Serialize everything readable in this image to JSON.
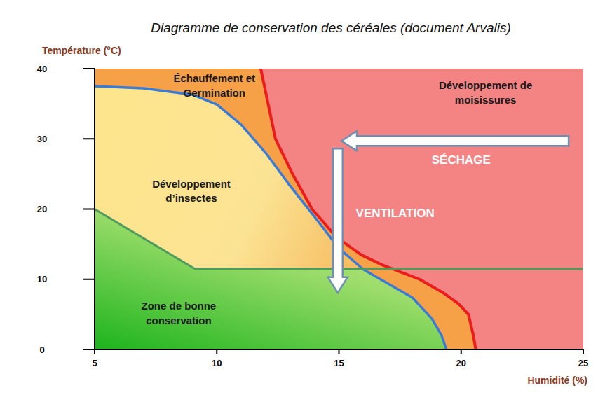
{
  "chart_data": {
    "type": "line",
    "title": "Diagramme de conservation des céréales (document Arvalis)",
    "x_label": "Humidité (%)",
    "y_label": "Température (°C)",
    "xlim": [
      5,
      25
    ],
    "ylim": [
      0,
      40
    ],
    "xticks": [
      5,
      10,
      15,
      20,
      25
    ],
    "yticks": [
      0,
      10,
      20,
      30,
      40
    ],
    "grid": false,
    "series": [
      {
        "color": "#ec1c1c",
        "x": [
          11.8,
          12.1,
          12.4,
          13.1,
          13.9,
          14.9,
          15.9,
          16.8,
          18.3,
          19.3,
          19.9,
          20.3,
          20.5,
          20.6
        ],
        "values": [
          40,
          35,
          30,
          25,
          20,
          16,
          13.5,
          12,
          10,
          8,
          6.5,
          5,
          2,
          0
        ]
      },
      {
        "color": "#3a7bd5",
        "x": [
          5,
          7,
          9,
          10,
          11,
          12,
          13,
          14,
          15,
          16,
          17,
          18,
          18.8,
          19.2,
          19.4
        ],
        "values": [
          37.5,
          37.2,
          36.3,
          34.9,
          32,
          28,
          23.3,
          18.9,
          14.4,
          11.4,
          9.4,
          7.4,
          4.4,
          2,
          0
        ]
      },
      {
        "color": "#4f9a5d",
        "x": [
          5,
          9.1,
          25
        ],
        "values": [
          20,
          11.5,
          11.5
        ]
      }
    ],
    "annotations": [
      {
        "text": [
          "Échauffement et",
          "Germination"
        ],
        "x": 9.9,
        "y": 37.6,
        "color": "#1a1a1a"
      },
      {
        "text": [
          "Développement de",
          "moisissures"
        ],
        "x": 21.0,
        "y": 36.6,
        "color": "#1a1a1a"
      },
      {
        "text": [
          "Développement",
          "d’insectes"
        ],
        "x": 8.96,
        "y": 22.6,
        "color": "#1a1a1a"
      },
      {
        "text": [
          "Zone de bonne",
          "conservation"
        ],
        "x": 8.44,
        "y": 5.2,
        "color": "#1a1a1a"
      },
      {
        "text": [
          "SÉCHAGE"
        ],
        "x": 20.0,
        "y": 27.0,
        "color": "#ffffff",
        "arrow": {
          "x": [
            24.4,
            15.1
          ],
          "y": [
            29.7,
            29.7
          ]
        }
      },
      {
        "text": [
          "VENTILATION"
        ],
        "x": 17.3,
        "y": 19.4,
        "color": "#ffffff",
        "arrow": {
          "x": [
            14.95,
            14.95
          ],
          "y": [
            28.6,
            8.1
          ]
        }
      }
    ]
  }
}
